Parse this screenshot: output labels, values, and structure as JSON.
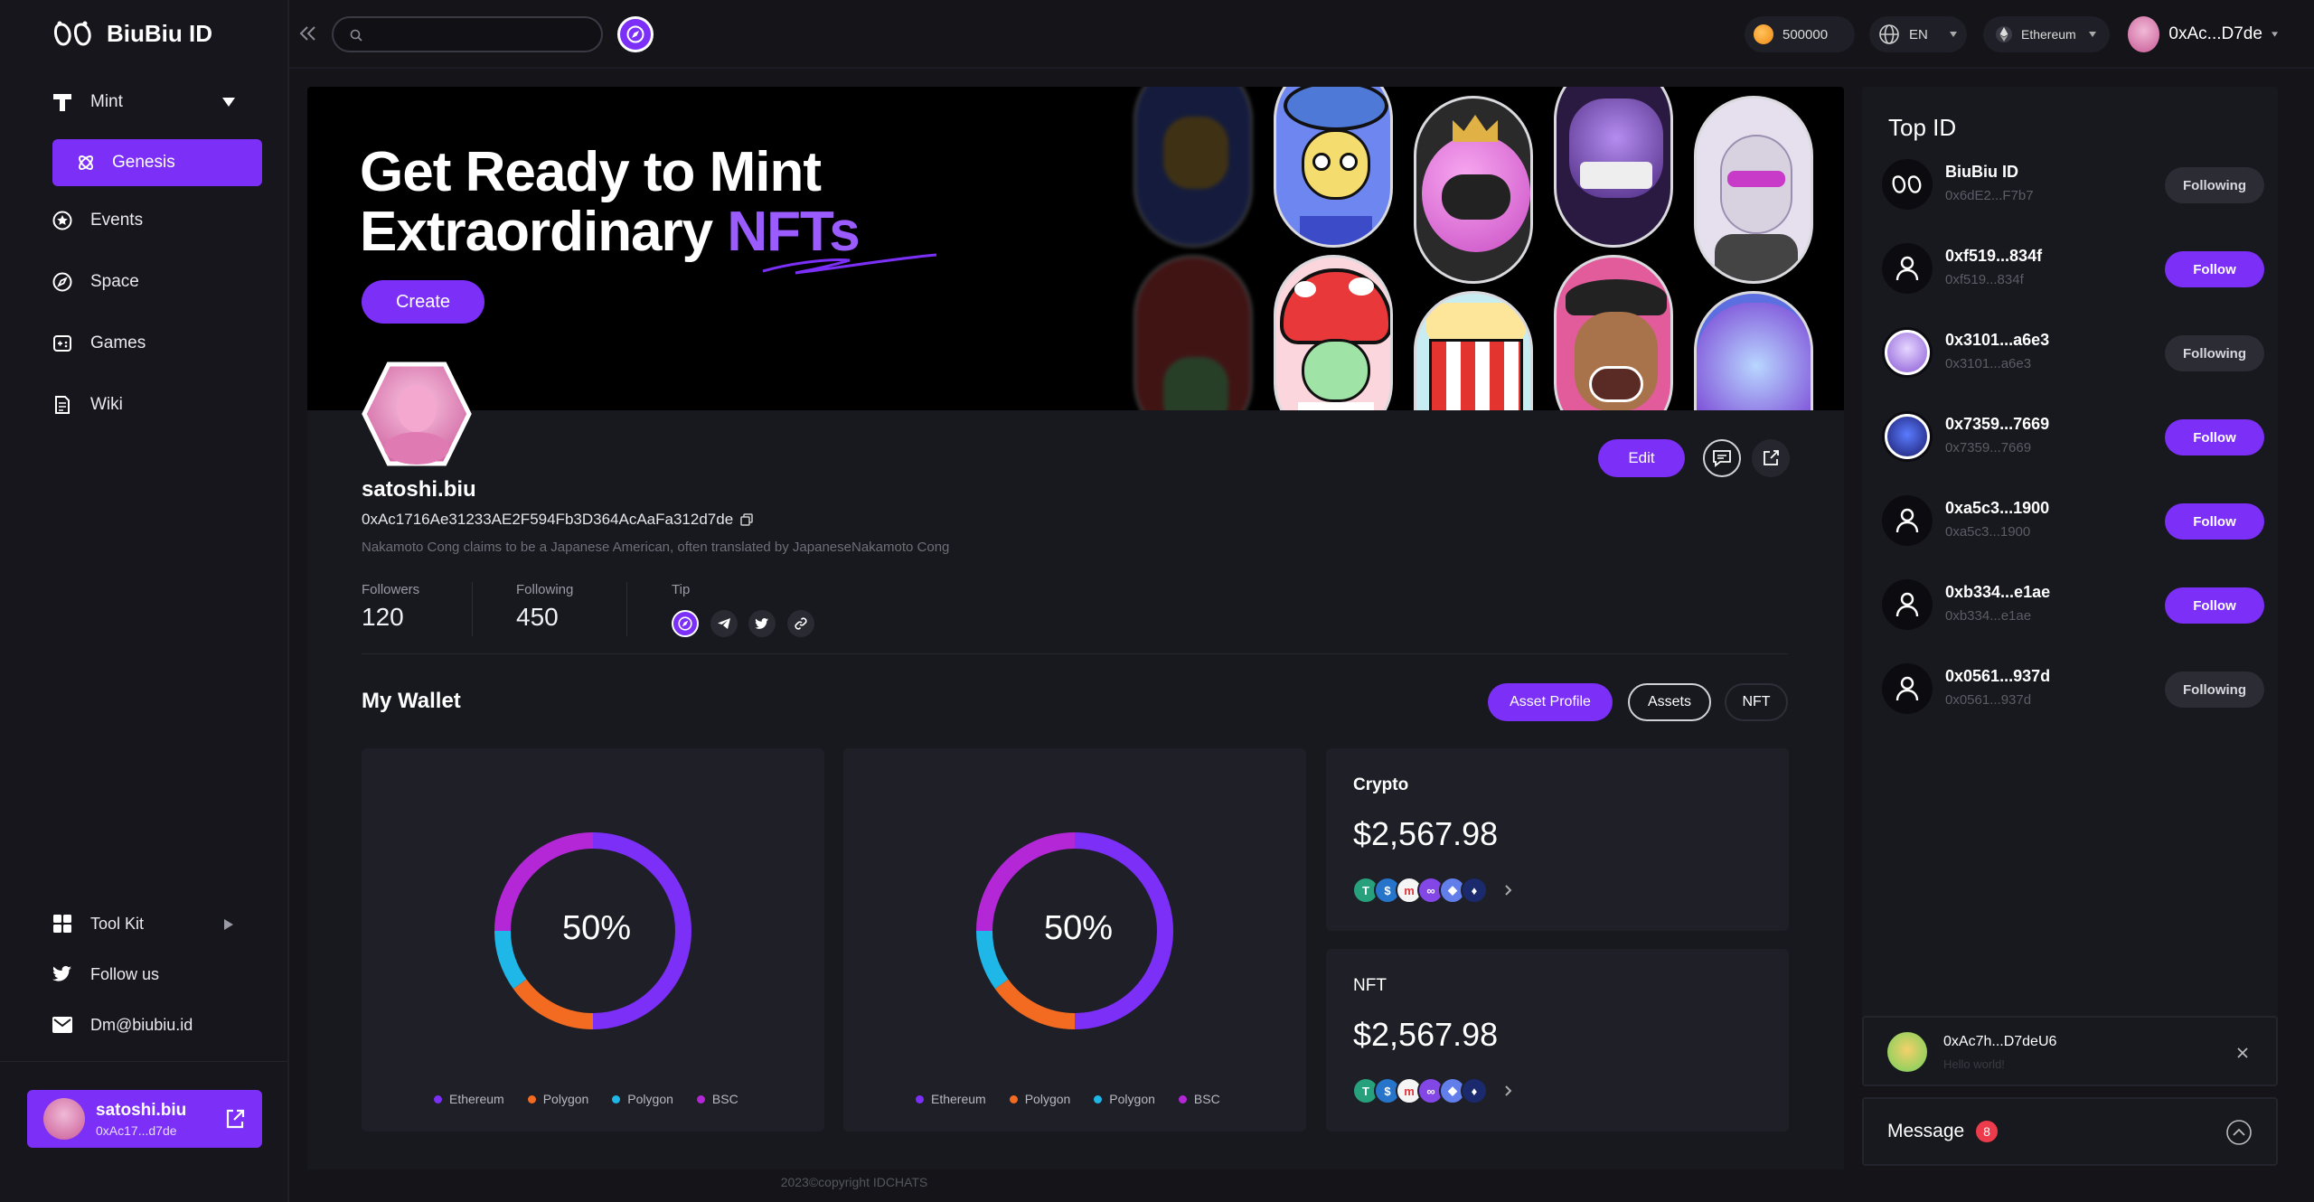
{
  "app": {
    "name": "BiuBiu ID"
  },
  "sidebar": {
    "mint_label": "Mint",
    "items": [
      {
        "label": "Genesis",
        "icon": "genesis-icon"
      },
      {
        "label": "Events",
        "icon": "star-circle-icon"
      },
      {
        "label": "Space",
        "icon": "compass-icon"
      },
      {
        "label": "Games",
        "icon": "gamepad-icon"
      },
      {
        "label": "Wiki",
        "icon": "document-icon"
      }
    ],
    "bottom": [
      {
        "label": "Tool Kit",
        "icon": "grid-icon"
      },
      {
        "label": "Follow us",
        "icon": "twitter-icon"
      },
      {
        "label": "Dm@biubiu.id",
        "icon": "mail-icon"
      }
    ],
    "user": {
      "name": "satoshi.biu",
      "address": "0xAc17...d7de"
    }
  },
  "topbar": {
    "search_placeholder": "",
    "balance": "500000",
    "language": "EN",
    "network": "Ethereum",
    "account": "0xAc...D7de"
  },
  "hero": {
    "title_line1": "Get Ready to Mint",
    "title_line2_plain": "Extraordinary ",
    "title_line2_accent": "NFTs",
    "create_label": "Create"
  },
  "profile": {
    "name": "satoshi.biu",
    "address": "0xAc1716Ae31233AE2F594Fb3D364AcAaFa312d7de",
    "bio": "Nakamoto Cong claims to be a Japanese American, often translated by JapaneseNakamoto Cong",
    "followers_label": "Followers",
    "followers": "120",
    "following_label": "Following",
    "following": "450",
    "tip_label": "Tip",
    "edit_label": "Edit"
  },
  "wallet": {
    "title": "My Wallet",
    "tabs": [
      "Asset Profile",
      "Assets",
      "NFT"
    ],
    "active_tab": "Asset Profile",
    "donut1_label": "50%",
    "donut2_label": "50%",
    "legend": [
      "Ethereum",
      "Polygon",
      "Polygon",
      "BSC"
    ],
    "crypto_title": "Crypto",
    "crypto_value": "$2,567.98",
    "nft_title": "NFT",
    "nft_value": "$2,567.98"
  },
  "chart_data": [
    {
      "type": "pie",
      "categories": [
        "Ethereum",
        "Polygon",
        "Polygon",
        "BSC"
      ],
      "values": [
        50,
        15,
        10,
        25
      ],
      "colors": [
        "#7b2ff7",
        "#f36b21",
        "#1fb6e8",
        "#b327d6"
      ]
    },
    {
      "type": "pie",
      "categories": [
        "Ethereum",
        "Polygon",
        "Polygon",
        "BSC"
      ],
      "values": [
        50,
        15,
        10,
        25
      ],
      "colors": [
        "#7b2ff7",
        "#f36b21",
        "#1fb6e8",
        "#b327d6"
      ]
    }
  ],
  "colors": {
    "accent": "#7b2ff7",
    "bg": "#141419",
    "panel": "#18181f"
  },
  "top_id": {
    "title": "Top ID",
    "rows": [
      {
        "name": "BiuBiu ID",
        "address": "0x6dE2...F7b7",
        "state": "Following"
      },
      {
        "name": "0xf519...834f",
        "address": "0xf519...834f",
        "state": "Follow"
      },
      {
        "name": "0x3101...a6e3",
        "address": "0x3101...a6e3",
        "state": "Following"
      },
      {
        "name": "0x7359...7669",
        "address": "0x7359...7669",
        "state": "Follow"
      },
      {
        "name": "0xa5c3...1900",
        "address": "0xa5c3...1900",
        "state": "Follow"
      },
      {
        "name": "0xb334...e1ae",
        "address": "0xb334...e1ae",
        "state": "Follow"
      },
      {
        "name": "0x0561...937d",
        "address": "0x0561...937d",
        "state": "Following"
      }
    ]
  },
  "chat": {
    "popup_name": "0xAc7h...D7deU6",
    "popup_preview": "Hello world!",
    "message_label": "Message",
    "message_count": "8"
  },
  "footer": "2023©copyright IDCHATS"
}
